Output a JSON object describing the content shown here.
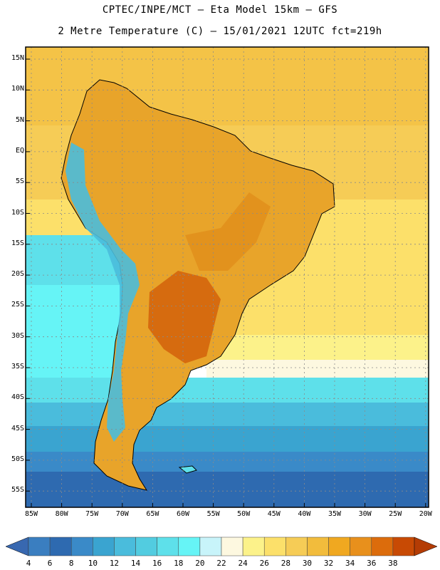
{
  "title": {
    "line1": "CPTEC/INPE/MCT –  Eta Model 15km – GFS",
    "line2": "2 Metre Temperature (C) – 15/01/2021 12UTC fct=219h"
  },
  "map": {
    "lat_labels": [
      "15N",
      "10N",
      "5N",
      "EQ",
      "5S",
      "10S",
      "15S",
      "20S",
      "25S",
      "30S",
      "35S",
      "40S",
      "45S",
      "50S",
      "55S"
    ],
    "lon_labels": [
      "85W",
      "80W",
      "75W",
      "70W",
      "65W",
      "60W",
      "55W",
      "50W",
      "45W",
      "40W",
      "35W",
      "30W",
      "25W",
      "20W"
    ]
  },
  "colorbar": {
    "values": [
      "4",
      "6",
      "8",
      "10",
      "12",
      "14",
      "16",
      "18",
      "20",
      "22",
      "24",
      "26",
      "28",
      "30",
      "32",
      "34",
      "36",
      "38"
    ],
    "colors": [
      "#3a7ec0",
      "#2e6ab0",
      "#3a8ac8",
      "#3aa4d0",
      "#4abcdc",
      "#52cce0",
      "#5ee0ea",
      "#66f4f6",
      "#c8f4fa",
      "#fdf8e0",
      "#fcf28a",
      "#fce06a",
      "#f6cc56",
      "#f2bc3c",
      "#f0a820",
      "#e8901c",
      "#dc6c0c",
      "#c84a04"
    ],
    "low_color": "#3868b0",
    "high_color": "#b43c04"
  }
}
